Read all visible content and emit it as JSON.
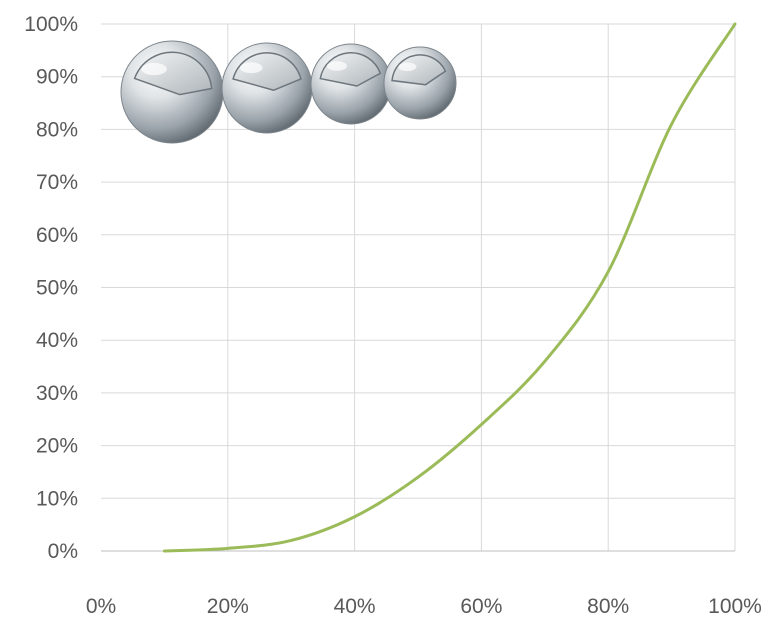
{
  "chart_data": {
    "type": "line",
    "title": "",
    "xlabel": "",
    "ylabel": "",
    "xlim": [
      0,
      100
    ],
    "ylim": [
      0,
      100
    ],
    "x_ticks": [
      "0%",
      "20%",
      "40%",
      "60%",
      "80%",
      "100%"
    ],
    "y_ticks": [
      "0%",
      "10%",
      "20%",
      "30%",
      "40%",
      "50%",
      "60%",
      "70%",
      "80%",
      "90%",
      "100%"
    ],
    "grid": true,
    "legend": "none",
    "series": [
      {
        "color": "#9bbb59",
        "x": [
          10,
          20,
          30,
          40,
          50,
          60,
          70,
          80,
          90,
          100
        ],
        "y": [
          0,
          0.5,
          2,
          6.5,
          14,
          24,
          36,
          53,
          81,
          100
        ]
      }
    ],
    "decoration": {
      "icon": "shrinking-spheres-icon",
      "count": 4
    }
  }
}
